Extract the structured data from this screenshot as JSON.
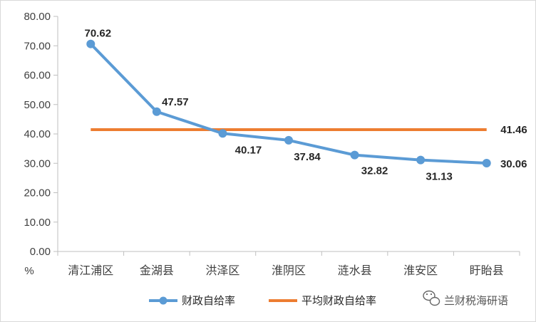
{
  "chart_data": {
    "type": "line",
    "title": "",
    "xlabel": "",
    "ylabel": "%",
    "ylim": [
      0,
      80
    ],
    "yticks": [
      "0.00",
      "10.00",
      "20.00",
      "30.00",
      "40.00",
      "50.00",
      "60.00",
      "70.00",
      "80.00"
    ],
    "categories": [
      "清江浦区",
      "金湖县",
      "洪泽区",
      "淮阴区",
      "涟水县",
      "淮安区",
      "盱眙县"
    ],
    "series": [
      {
        "name": "财政自给率",
        "values": [
          70.62,
          47.57,
          40.17,
          37.84,
          32.82,
          31.13,
          30.06
        ],
        "labels": [
          "70.62",
          "47.57",
          "40.17",
          "37.84",
          "32.82",
          "31.13",
          "30.06"
        ],
        "color": "#5b9bd5",
        "marker": "circle"
      },
      {
        "name": "平均财政自给率",
        "values": [
          41.46,
          41.46,
          41.46,
          41.46,
          41.46,
          41.46,
          41.46
        ],
        "end_label": "41.46",
        "color": "#ed7d31"
      }
    ],
    "grid": false,
    "legend": "bottom"
  },
  "watermark": {
    "text": "兰财税海研语",
    "icon": "wechat-icon"
  }
}
